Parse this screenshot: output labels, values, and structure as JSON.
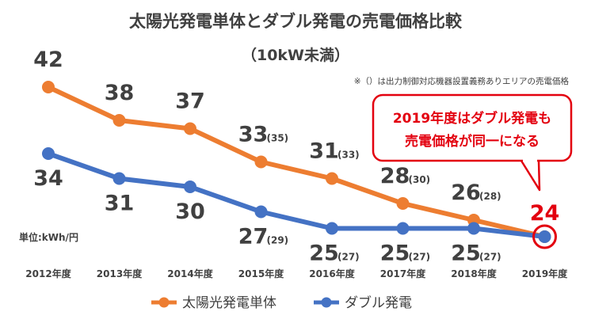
{
  "chart_data": {
    "type": "line",
    "title": "太陽光発電単体とダブル発電の売電価格比較",
    "subtitle": "（10kW未満）",
    "note": "※（）は出力制御対応機器設置義務ありエリアの売電価格",
    "unit_label": "単位:kWh/円",
    "categories": [
      "2012年度",
      "2013年度",
      "2014年度",
      "2015年度",
      "2016年度",
      "2017年度",
      "2018年度",
      "2019年度"
    ],
    "ylim": [
      22,
      44
    ],
    "series": [
      {
        "name": "太陽光発電単体",
        "color": "#ed7d31",
        "values": [
          42,
          38,
          37,
          33,
          31,
          28,
          26,
          24
        ],
        "labels": [
          "42",
          "38",
          "37",
          "33",
          "31",
          "28",
          "26",
          ""
        ],
        "sub_labels": [
          "",
          "",
          "",
          "(35)",
          "(33)",
          "(30)",
          "(28)",
          ""
        ]
      },
      {
        "name": "ダブル発電",
        "color": "#4472c4",
        "values": [
          34,
          31,
          30,
          27,
          25,
          25,
          25,
          24
        ],
        "labels": [
          "34",
          "31",
          "30",
          "27",
          "25",
          "25",
          "25",
          ""
        ],
        "sub_labels": [
          "",
          "",
          "",
          "(29)",
          "(27)",
          "(27)",
          "(27)",
          ""
        ]
      }
    ],
    "highlight": {
      "value_label": "24",
      "color": "#e3000f"
    },
    "callout": {
      "lines": [
        "2019年度はダブル発電も",
        "売電価格が同一になる"
      ],
      "color": "#e3000f"
    }
  }
}
